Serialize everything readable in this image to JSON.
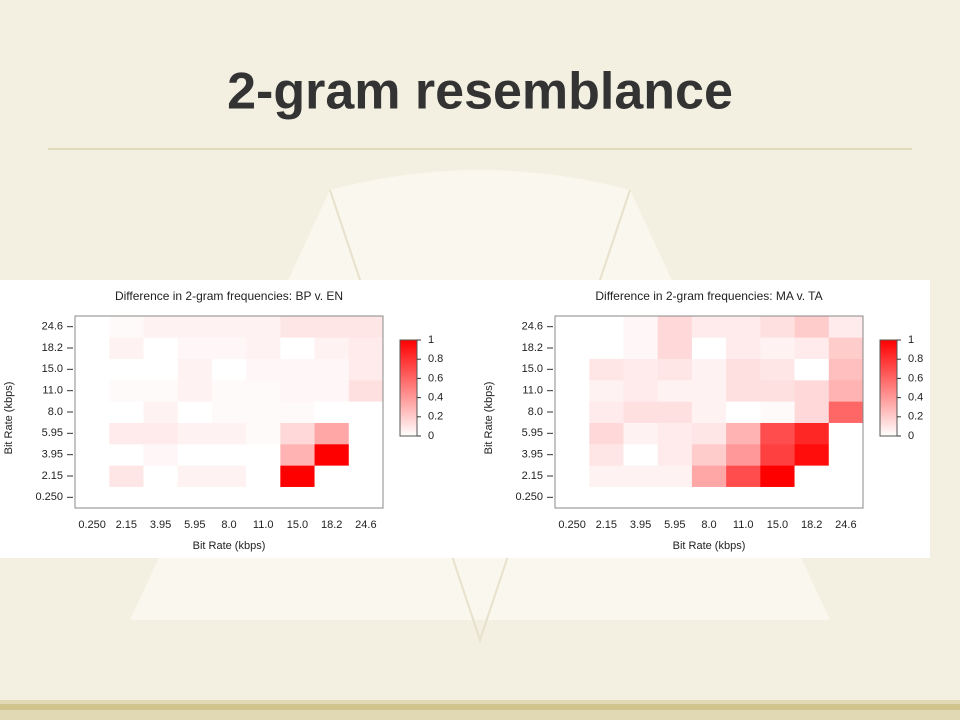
{
  "title": "2-gram resemblance",
  "chart_data": [
    {
      "type": "heatmap",
      "title": "Difference in 2-gram frequencies: BP v. EN",
      "x_label": "Bit Rate (kbps)",
      "y_label": "Bit Rate (kbps)",
      "x_categories": [
        "0.250",
        "2.15",
        "3.95",
        "5.95",
        "8.0",
        "11.0",
        "15.0",
        "18.2",
        "24.6"
      ],
      "y_categories": [
        "0.250",
        "2.15",
        "3.95",
        "5.95",
        "8.0",
        "11.0",
        "15.0",
        "18.2",
        "24.6"
      ],
      "values": [
        [
          0,
          0,
          0,
          0,
          0,
          0,
          0,
          0,
          0
        ],
        [
          0,
          0.1,
          0,
          0.05,
          0.05,
          0,
          1,
          0,
          0
        ],
        [
          0,
          0,
          0.03,
          0,
          0,
          0,
          0.3,
          1,
          0
        ],
        [
          0,
          0.08,
          0.08,
          0.05,
          0.05,
          0.02,
          0.15,
          0.35,
          0
        ],
        [
          0,
          0,
          0.05,
          0,
          0.02,
          0.02,
          0.02,
          0,
          0
        ],
        [
          0,
          0.02,
          0.02,
          0.05,
          0.02,
          0.02,
          0.03,
          0.03,
          0.12
        ],
        [
          0,
          0,
          0,
          0.05,
          0,
          0.03,
          0.03,
          0.03,
          0.08
        ],
        [
          0,
          0.05,
          0,
          0.03,
          0.03,
          0.05,
          0,
          0.05,
          0.08
        ],
        [
          0,
          0.02,
          0.05,
          0.05,
          0.05,
          0.05,
          0.1,
          0.1,
          0.1
        ]
      ],
      "color_low": "#ffffff",
      "color_high": "#ff0000",
      "clim": [
        0,
        1
      ],
      "cticks": [
        0,
        0.2,
        0.4,
        0.6,
        0.8,
        1
      ]
    },
    {
      "type": "heatmap",
      "title": "Difference in 2-gram frequencies: MA v. TA",
      "x_label": "Bit Rate (kbps)",
      "y_label": "Bit Rate (kbps)",
      "x_categories": [
        "0.250",
        "2.15",
        "3.95",
        "5.95",
        "8.0",
        "11.0",
        "15.0",
        "18.2",
        "24.6"
      ],
      "y_categories": [
        "0.250",
        "2.15",
        "3.95",
        "5.95",
        "8.0",
        "11.0",
        "15.0",
        "18.2",
        "24.6"
      ],
      "values": [
        [
          0,
          0,
          0,
          0,
          0,
          0,
          0,
          0,
          0
        ],
        [
          0,
          0.05,
          0.05,
          0.05,
          0.35,
          0.7,
          1,
          0,
          0
        ],
        [
          0,
          0.1,
          0,
          0.08,
          0.2,
          0.4,
          0.75,
          0.95,
          0
        ],
        [
          0,
          0.15,
          0.05,
          0.08,
          0.1,
          0.3,
          0.7,
          0.85,
          0
        ],
        [
          0,
          0.08,
          0.12,
          0.12,
          0.05,
          0,
          0.02,
          0.15,
          0.6
        ],
        [
          0,
          0.05,
          0.08,
          0.05,
          0.05,
          0.12,
          0.12,
          0.15,
          0.3
        ],
        [
          0,
          0.1,
          0.08,
          0.1,
          0.05,
          0.12,
          0.1,
          0,
          0.25
        ],
        [
          0,
          0,
          0.03,
          0.15,
          0,
          0.08,
          0.05,
          0.08,
          0.2
        ],
        [
          0,
          0,
          0.03,
          0.15,
          0.08,
          0.08,
          0.12,
          0.2,
          0.08
        ]
      ],
      "color_low": "#ffffff",
      "color_high": "#ff0000",
      "clim": [
        0,
        1
      ],
      "cticks": [
        0,
        0.2,
        0.4,
        0.6,
        0.8,
        1
      ]
    }
  ]
}
